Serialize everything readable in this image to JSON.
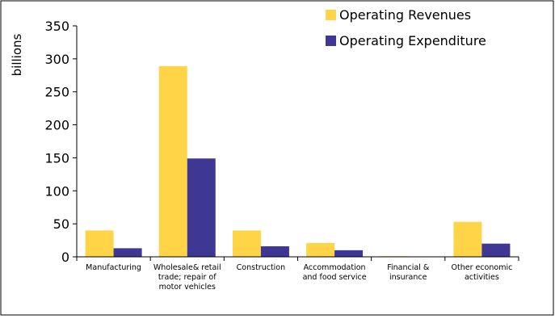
{
  "chart_data": {
    "type": "bar",
    "title": "",
    "xlabel": "",
    "ylabel": "billions",
    "ylim": [
      0,
      350
    ],
    "yticks": [
      0,
      50,
      100,
      150,
      200,
      250,
      300,
      350
    ],
    "categories": [
      [
        "Manufacturing"
      ],
      [
        "Wholesale& retail",
        "trade; repair of",
        "motor vehicles"
      ],
      [
        "Construction"
      ],
      [
        "Accommodation",
        "and food service"
      ],
      [
        "Financial &",
        "insurance"
      ],
      [
        "Other economic",
        "activities"
      ]
    ],
    "series": [
      {
        "name": "Operating Revenues",
        "color": "#FFD447",
        "values": [
          40,
          289,
          40,
          21,
          1,
          53
        ]
      },
      {
        "name": "Operating Expenditure",
        "color": "#3F3794",
        "values": [
          13,
          149,
          16,
          10,
          0,
          20
        ]
      }
    ],
    "legend_position": "top-right",
    "grid": false
  }
}
